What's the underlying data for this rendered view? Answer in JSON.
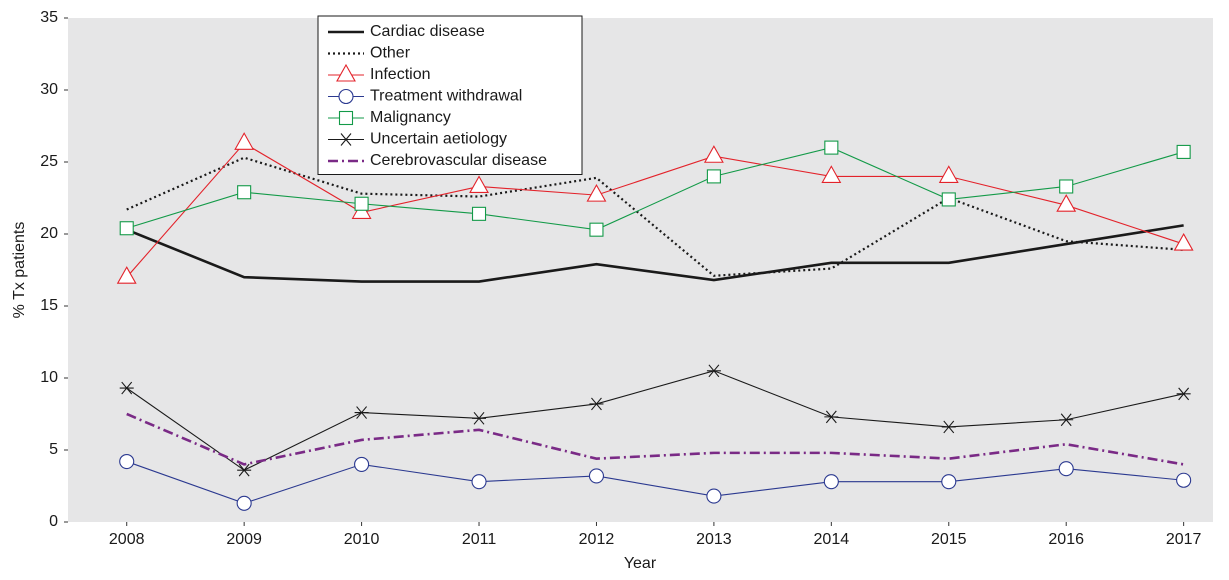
{
  "chart_data": {
    "type": "line",
    "x_label": "Year",
    "y_label": "% Tx patients",
    "x": [
      2008,
      2009,
      2010,
      2011,
      2012,
      2013,
      2014,
      2015,
      2016,
      2017
    ],
    "xlim": [
      2007.5,
      2017.25
    ],
    "xticks": [
      2008,
      2009,
      2010,
      2011,
      2012,
      2013,
      2014,
      2015,
      2016,
      2017
    ],
    "ylim": [
      0,
      35
    ],
    "yticks": [
      0,
      5,
      10,
      15,
      20,
      25,
      30,
      35
    ],
    "legend": "top-left",
    "series": [
      {
        "name": "Cardiac disease",
        "color": "#1a1a1a",
        "dash": "solid",
        "width": 2.6,
        "marker": "none",
        "values": [
          20.3,
          17.0,
          16.7,
          16.7,
          17.9,
          16.8,
          18.0,
          18.0,
          19.3,
          20.6
        ]
      },
      {
        "name": "Other",
        "color": "#1a1a1a",
        "dash": "dotted",
        "width": 2.2,
        "marker": "none",
        "values": [
          21.7,
          25.3,
          22.8,
          22.6,
          23.9,
          17.1,
          17.6,
          22.5,
          19.5,
          18.9
        ]
      },
      {
        "name": "Infection",
        "color": "#e3232b",
        "dash": "solid",
        "width": 1.1,
        "marker": "triangle",
        "values": [
          17.0,
          26.3,
          21.5,
          23.3,
          22.7,
          25.4,
          24.0,
          24.0,
          22.0,
          19.3
        ]
      },
      {
        "name": "Treatment withdrawal",
        "color": "#2b3990",
        "dash": "solid",
        "width": 1.1,
        "marker": "circle",
        "values": [
          4.2,
          1.3,
          4.0,
          2.8,
          3.2,
          1.8,
          2.8,
          2.8,
          3.7,
          2.9
        ]
      },
      {
        "name": "Malignancy",
        "color": "#139a48",
        "dash": "solid",
        "width": 1.1,
        "marker": "square",
        "values": [
          20.4,
          22.9,
          22.1,
          21.4,
          20.3,
          24.0,
          26.0,
          22.4,
          23.3,
          25.7
        ]
      },
      {
        "name": "Uncertain aetiology",
        "color": "#1a1a1a",
        "dash": "solid",
        "width": 1.1,
        "marker": "asterisk",
        "values": [
          9.3,
          3.6,
          7.6,
          7.2,
          8.2,
          10.5,
          7.3,
          6.6,
          7.1,
          8.9
        ]
      },
      {
        "name": "Cerebrovascular disease",
        "color": "#7a2a86",
        "dash": "dashdot",
        "width": 2.6,
        "marker": "none",
        "values": [
          7.5,
          4.0,
          5.7,
          6.4,
          4.4,
          4.8,
          4.8,
          4.4,
          5.4,
          4.0
        ]
      }
    ]
  }
}
